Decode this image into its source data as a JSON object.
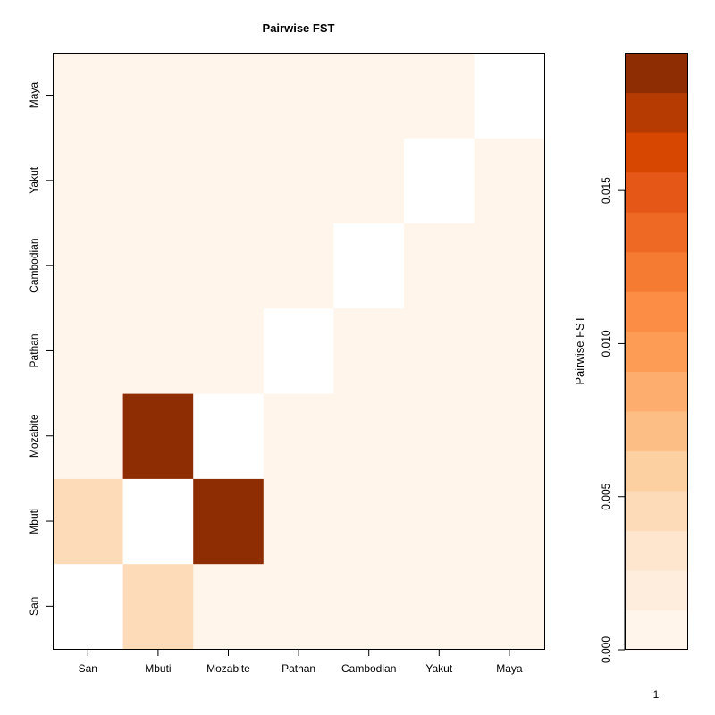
{
  "chart_data": {
    "type": "heatmap",
    "title": "Pairwise FST",
    "populations": [
      "San",
      "Mbuti",
      "Mozabite",
      "Pathan",
      "Cambodian",
      "Yakut",
      "Maya"
    ],
    "x_categories": [
      "San",
      "Mbuti",
      "Mozabite",
      "Pathan",
      "Cambodian",
      "Yakut",
      "Maya"
    ],
    "y_categories": [
      "San",
      "Mbuti",
      "Mozabite",
      "Pathan",
      "Cambodian",
      "Yakut",
      "Maya"
    ],
    "matrix": [
      [
        null,
        0.0045,
        0.0005,
        0.0005,
        0.0005,
        0.0005,
        0.0005
      ],
      [
        0.0045,
        null,
        0.0188,
        0.0005,
        0.0005,
        0.0005,
        0.0005
      ],
      [
        0.0005,
        0.0188,
        null,
        0.0005,
        0.0005,
        0.0005,
        0.0005
      ],
      [
        0.0005,
        0.0005,
        0.0005,
        null,
        0.0005,
        0.0005,
        0.0005
      ],
      [
        0.0005,
        0.0005,
        0.0005,
        0.0005,
        null,
        0.0005,
        0.0005
      ],
      [
        0.0005,
        0.0005,
        0.0005,
        0.0005,
        0.0005,
        null,
        0.0005
      ],
      [
        0.0005,
        0.0005,
        0.0005,
        0.0005,
        0.0005,
        0.0005,
        null
      ]
    ],
    "diagonal": "blank",
    "color_scale": {
      "label": "Pairwise FST",
      "min": 0.0,
      "max": 0.0195,
      "ticks": [
        0.0,
        0.005,
        0.01,
        0.015
      ],
      "tick_labels": [
        "0.000",
        "0.005",
        "0.010",
        "0.015"
      ],
      "bottom_label": "1",
      "colors": [
        "#fff5eb",
        "#feeddd",
        "#fee5ce",
        "#fddbb9",
        "#fdd0a2",
        "#fdbe85",
        "#fdad6e",
        "#fd9c55",
        "#fc8d45",
        "#f67b32",
        "#ee6a24",
        "#e45716",
        "#d84701",
        "#b63b03",
        "#8e2d04"
      ]
    }
  }
}
